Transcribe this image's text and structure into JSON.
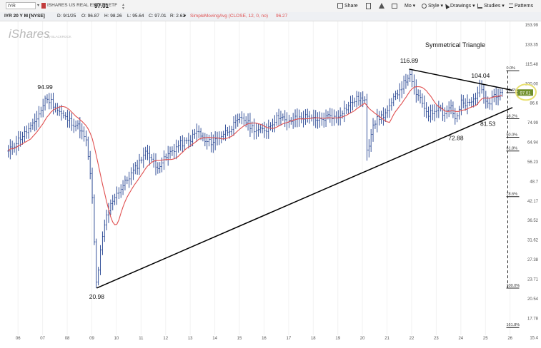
{
  "toolbar": {
    "symbol": "IYR",
    "name": "ISHARES US REAL ESTATE ETF",
    "last": "97.01",
    "share": "Share",
    "mo": "Mo",
    "style": "Style",
    "drawings": "Drawings",
    "studies": "Studies",
    "patterns": "Patterns"
  },
  "infobar": {
    "period": "IYR 20 Y M [NYSE]",
    "date": "D: 9/1/25",
    "open": "O: 96.87",
    "high": "H: 98.26",
    "low": "L: 95.64",
    "close": "C: 97.01",
    "range": "R: 2.62",
    "study": "SimpleMovingAvg (CLOSE, 12, 0, no)",
    "study_value": "96.27"
  },
  "colors": {
    "price_bars": "#1f3f8f",
    "sma": "#e05050",
    "trendline": "#000000",
    "fib_line": "#222222",
    "current_price_badge": "#6f8f2a",
    "highlight_ellipse": "#e8e070",
    "watermark": "#b9b9b9"
  },
  "chart_data": {
    "type": "ohlc",
    "watermark": "iShares",
    "watermark_sub": "by BLACKROCK",
    "title_annotation": "Symmetrical Triangle",
    "x_ticks": [
      "06",
      "07",
      "08",
      "09",
      "10",
      "11",
      "12",
      "13",
      "14",
      "15",
      "16",
      "17",
      "18",
      "19",
      "20",
      "21",
      "22",
      "23",
      "24",
      "25",
      "26"
    ],
    "y_ticks": [
      "153.99",
      "133.35",
      "115.48",
      "100.00",
      "86.6",
      "74.99",
      "64.94",
      "56.23",
      "48.7",
      "42.17",
      "36.52",
      "31.62",
      "27.38",
      "23.71",
      "20.54",
      "17.78",
      "15.4"
    ],
    "y_scale": "log",
    "ylim": [
      14.5,
      170
    ],
    "xlim": [
      2005.5,
      2026.3
    ],
    "current_price": 97.01,
    "series": [
      {
        "kind": "monthly_ohlc_close",
        "points": [
          [
            2005.6,
            61
          ],
          [
            2005.8,
            64
          ],
          [
            2006.0,
            67
          ],
          [
            2006.3,
            71
          ],
          [
            2006.6,
            75
          ],
          [
            2006.9,
            84
          ],
          [
            2007.1,
            90
          ],
          [
            2007.3,
            92
          ],
          [
            2007.6,
            85
          ],
          [
            2007.9,
            80
          ],
          [
            2008.2,
            77
          ],
          [
            2008.5,
            74
          ],
          [
            2008.8,
            65
          ],
          [
            2009.0,
            45
          ],
          [
            2009.1,
            30
          ],
          [
            2009.2,
            22
          ],
          [
            2009.4,
            30
          ],
          [
            2009.6,
            37
          ],
          [
            2009.9,
            43
          ],
          [
            2010.2,
            46
          ],
          [
            2010.5,
            50
          ],
          [
            2010.8,
            54
          ],
          [
            2011.1,
            60
          ],
          [
            2011.3,
            61
          ],
          [
            2011.6,
            54
          ],
          [
            2011.9,
            57
          ],
          [
            2012.2,
            61
          ],
          [
            2012.6,
            65
          ],
          [
            2012.9,
            66
          ],
          [
            2013.3,
            72
          ],
          [
            2013.6,
            66
          ],
          [
            2013.9,
            66
          ],
          [
            2014.2,
            69
          ],
          [
            2014.5,
            72
          ],
          [
            2014.9,
            77
          ],
          [
            2015.1,
            80
          ],
          [
            2015.5,
            74
          ],
          [
            2015.8,
            72
          ],
          [
            2016.1,
            73
          ],
          [
            2016.4,
            78
          ],
          [
            2016.7,
            82
          ],
          [
            2016.9,
            76
          ],
          [
            2017.2,
            79
          ],
          [
            2017.5,
            80
          ],
          [
            2017.9,
            81
          ],
          [
            2018.1,
            77
          ],
          [
            2018.4,
            79
          ],
          [
            2018.7,
            82
          ],
          [
            2018.9,
            79
          ],
          [
            2019.1,
            83
          ],
          [
            2019.4,
            87
          ],
          [
            2019.7,
            92
          ],
          [
            2019.9,
            93
          ],
          [
            2020.1,
            90
          ],
          [
            2020.2,
            60
          ],
          [
            2020.4,
            76
          ],
          [
            2020.7,
            80
          ],
          [
            2020.9,
            82
          ],
          [
            2021.1,
            86
          ],
          [
            2021.4,
            97
          ],
          [
            2021.7,
            105
          ],
          [
            2021.9,
            112
          ],
          [
            2022.0,
            105
          ],
          [
            2022.2,
            96
          ],
          [
            2022.4,
            90
          ],
          [
            2022.7,
            82
          ],
          [
            2022.9,
            84
          ],
          [
            2023.1,
            88
          ],
          [
            2023.3,
            82
          ],
          [
            2023.6,
            88
          ],
          [
            2023.8,
            77
          ],
          [
            2024.0,
            90
          ],
          [
            2024.2,
            88
          ],
          [
            2024.5,
            91
          ],
          [
            2024.7,
            99
          ],
          [
            2024.8,
            103
          ],
          [
            2024.9,
            97
          ],
          [
            2025.0,
            93
          ],
          [
            2025.2,
            90
          ],
          [
            2025.3,
            97
          ],
          [
            2025.5,
            94
          ],
          [
            2025.7,
            97
          ]
        ]
      },
      {
        "name": "SimpleMovingAvg (CLOSE, 12, 0, no)",
        "kind": "sma"
      }
    ],
    "annotations": [
      {
        "text": "94.99",
        "x": 2007.1,
        "y": 94.99,
        "pos": "above"
      },
      {
        "text": "20.98",
        "x": 2009.2,
        "y": 20.98,
        "pos": "below"
      },
      {
        "text": "116.89",
        "x": 2021.9,
        "y": 116.89,
        "pos": "above"
      },
      {
        "text": "104.04",
        "x": 2024.8,
        "y": 104.04,
        "pos": "above"
      },
      {
        "text": "72.88",
        "x": 2023.8,
        "y": 72.88,
        "pos": "below"
      },
      {
        "text": "81.53",
        "x": 2025.1,
        "y": 81.53,
        "pos": "below"
      }
    ],
    "trendlines": [
      {
        "name": "support",
        "from": [
          2009.2,
          20.98
        ],
        "to": [
          2026.1,
          86.5
        ]
      },
      {
        "name": "resistance",
        "from": [
          2021.9,
          116.89
        ],
        "to": [
          2026.1,
          99.0
        ]
      }
    ],
    "fibonacci": {
      "levels": [
        "0.0%",
        "23.6%",
        "38.2%",
        "50.0%",
        "61.8%",
        "78.6%",
        "100.0%",
        "161.8%"
      ],
      "prices": [
        115.48,
        97.2,
        79.2,
        68.5,
        61.5,
        43.0,
        20.98,
        15.4
      ],
      "x_start": 2025.85
    }
  }
}
